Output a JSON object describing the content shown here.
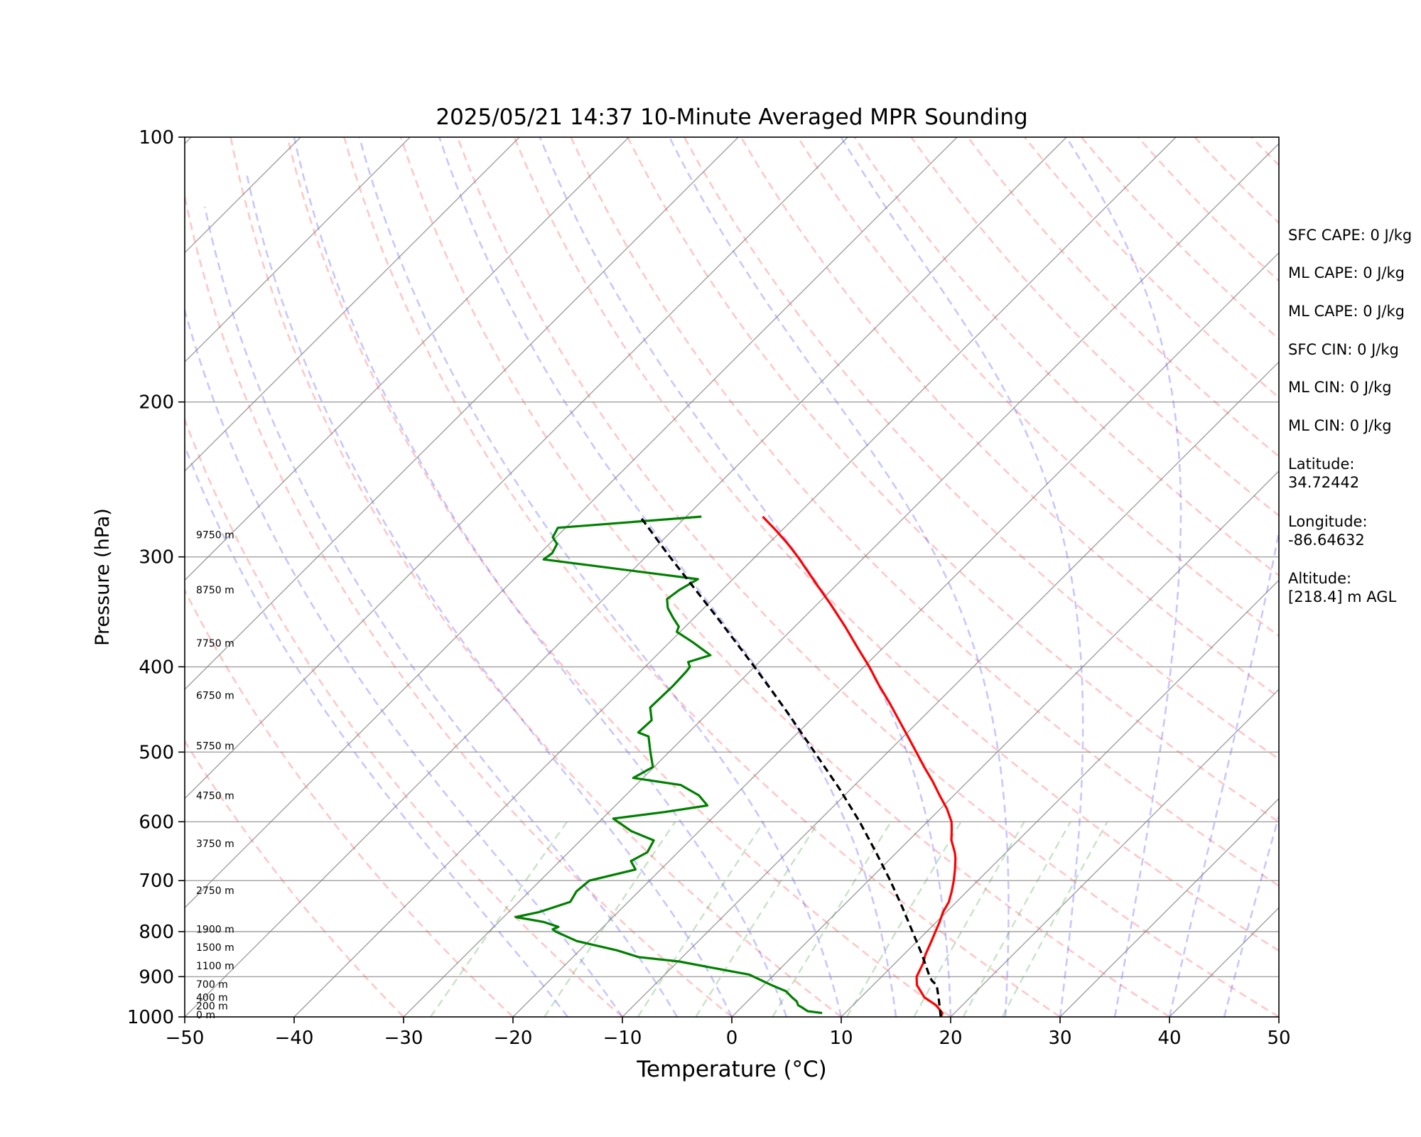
{
  "chart_data": {
    "type": "line",
    "title": "2025/05/21 14:37 10-Minute Averaged MPR Sounding",
    "xlabel": "Temperature (°C)",
    "ylabel": "Pressure (hPa)",
    "xlim": [
      -50,
      50
    ],
    "ylim": [
      1000,
      100
    ],
    "y_scale": "log",
    "skew": true,
    "x_ticks": [
      "−50",
      "−40",
      "−30",
      "−20",
      "−10",
      "0",
      "10",
      "20",
      "30",
      "40",
      "50"
    ],
    "y_ticks": [
      "100",
      "200",
      "300",
      "400",
      "500",
      "600",
      "700",
      "800",
      "900",
      "1000"
    ],
    "height_labels": [
      {
        "label": "0 m",
        "p": 994
      },
      {
        "label": "200 m",
        "p": 972
      },
      {
        "label": "400 m",
        "p": 950
      },
      {
        "label": "700 m",
        "p": 918
      },
      {
        "label": "1100 m",
        "p": 875
      },
      {
        "label": "1500 m",
        "p": 833
      },
      {
        "label": "1900 m",
        "p": 795
      },
      {
        "label": "2750 m",
        "p": 718
      },
      {
        "label": "3750 m",
        "p": 635
      },
      {
        "label": "4750 m",
        "p": 560
      },
      {
        "label": "5750 m",
        "p": 492
      },
      {
        "label": "6750 m",
        "p": 431
      },
      {
        "label": "7750 m",
        "p": 376
      },
      {
        "label": "8750 m",
        "p": 327
      },
      {
        "label": "9750 m",
        "p": 283
      }
    ],
    "series": [
      {
        "name": "",
        "role": "temperature",
        "color": "#ff0000",
        "points": [
          [
            1000,
            19.1
          ],
          [
            990,
            18.9
          ],
          [
            970,
            17.6
          ],
          [
            950,
            15.8
          ],
          [
            920,
            14.0
          ],
          [
            900,
            13.2
          ],
          [
            870,
            12.6
          ],
          [
            850,
            12.0
          ],
          [
            820,
            11.3
          ],
          [
            800,
            10.8
          ],
          [
            780,
            10.3
          ],
          [
            760,
            9.7
          ],
          [
            740,
            9.3
          ],
          [
            720,
            8.6
          ],
          [
            700,
            7.8
          ],
          [
            680,
            6.9
          ],
          [
            660,
            5.9
          ],
          [
            650,
            5.3
          ],
          [
            630,
            3.9
          ],
          [
            610,
            2.8
          ],
          [
            600,
            2.2
          ],
          [
            580,
            0.6
          ],
          [
            560,
            -1.3
          ],
          [
            540,
            -3.2
          ],
          [
            520,
            -5.3
          ],
          [
            500,
            -7.4
          ],
          [
            480,
            -9.6
          ],
          [
            460,
            -11.9
          ],
          [
            440,
            -14.3
          ],
          [
            420,
            -16.9
          ],
          [
            400,
            -19.5
          ],
          [
            380,
            -22.4
          ],
          [
            360,
            -25.4
          ],
          [
            340,
            -28.7
          ],
          [
            320,
            -32.3
          ],
          [
            300,
            -36.1
          ],
          [
            290,
            -38.2
          ],
          [
            280,
            -40.5
          ],
          [
            270,
            -43.0
          ]
        ]
      },
      {
        "name": "",
        "role": "dewpoint",
        "color": "#008000",
        "points": [
          [
            990,
            7.9
          ],
          [
            985,
            6.4
          ],
          [
            975,
            5.5
          ],
          [
            970,
            5.0
          ],
          [
            960,
            4.5
          ],
          [
            950,
            3.7
          ],
          [
            935,
            2.6
          ],
          [
            920,
            0.7
          ],
          [
            905,
            -1.1
          ],
          [
            895,
            -2.3
          ],
          [
            880,
            -6.1
          ],
          [
            865,
            -9.9
          ],
          [
            855,
            -14.0
          ],
          [
            840,
            -16.6
          ],
          [
            820,
            -21.1
          ],
          [
            810,
            -22.5
          ],
          [
            800,
            -23.9
          ],
          [
            795,
            -24.4
          ],
          [
            790,
            -24.1
          ],
          [
            780,
            -25.9
          ],
          [
            770,
            -28.9
          ],
          [
            760,
            -27.2
          ],
          [
            740,
            -25.3
          ],
          [
            720,
            -25.7
          ],
          [
            700,
            -25.5
          ],
          [
            680,
            -22.3
          ],
          [
            665,
            -23.5
          ],
          [
            650,
            -22.8
          ],
          [
            630,
            -23.3
          ],
          [
            615,
            -26.2
          ],
          [
            595,
            -29.0
          ],
          [
            585,
            -24.9
          ],
          [
            575,
            -21.6
          ],
          [
            560,
            -23.3
          ],
          [
            545,
            -25.9
          ],
          [
            535,
            -30.9
          ],
          [
            520,
            -30.1
          ],
          [
            500,
            -31.7
          ],
          [
            480,
            -33.3
          ],
          [
            475,
            -34.6
          ],
          [
            460,
            -34.5
          ],
          [
            445,
            -35.8
          ],
          [
            420,
            -35.7
          ],
          [
            405,
            -35.8
          ],
          [
            400,
            -35.9
          ],
          [
            395,
            -36.5
          ],
          [
            388,
            -35.1
          ],
          [
            375,
            -37.9
          ],
          [
            365,
            -40.3
          ],
          [
            360,
            -40.6
          ],
          [
            352,
            -41.9
          ],
          [
            343,
            -43.3
          ],
          [
            335,
            -44.2
          ],
          [
            327,
            -43.9
          ],
          [
            318,
            -43.2
          ],
          [
            302,
            -59.1
          ],
          [
            297,
            -58.9
          ],
          [
            290,
            -59.3
          ],
          [
            285,
            -60.3
          ],
          [
            278,
            -60.7
          ],
          [
            270,
            -48.6
          ]
        ]
      },
      {
        "name": "",
        "role": "parcel",
        "color": "#000000",
        "points": [
          [
            1000,
            19.1
          ],
          [
            950,
            17.1
          ],
          [
            920,
            15.8
          ],
          [
            910,
            15.0
          ],
          [
            900,
            14.4
          ],
          [
            850,
            11.7
          ],
          [
            800,
            8.7
          ],
          [
            750,
            5.5
          ],
          [
            700,
            2.0
          ],
          [
            650,
            -1.9
          ],
          [
            600,
            -6.2
          ],
          [
            550,
            -11.1
          ],
          [
            500,
            -16.7
          ],
          [
            450,
            -22.9
          ],
          [
            400,
            -30.0
          ],
          [
            350,
            -38.2
          ],
          [
            300,
            -47.8
          ],
          [
            270,
            -54.2
          ]
        ]
      }
    ],
    "background": {
      "isotherms": true,
      "dry_adiabats": true,
      "moist_adiabats": true,
      "mixing_ratio_lines": true,
      "isobar_grid": true
    }
  },
  "info_panel": {
    "sfc_cape": "SFC CAPE: 0 J/kg",
    "ml_cape_1": "ML CAPE: 0 J/kg",
    "ml_cape_2": "ML CAPE: 0 J/kg",
    "sfc_cin": "SFC CIN: 0 J/kg",
    "ml_cin_1": "ML CIN: 0 J/kg",
    "ml_cin_2": "ML CIN: 0 J/kg",
    "latitude_label": "Latitude:",
    "latitude_value": "34.72442",
    "longitude_label": "Longitude:",
    "longitude_value": "-86.64632",
    "altitude_label": "Altitude:",
    "altitude_value": "[218.4] m AGL"
  }
}
